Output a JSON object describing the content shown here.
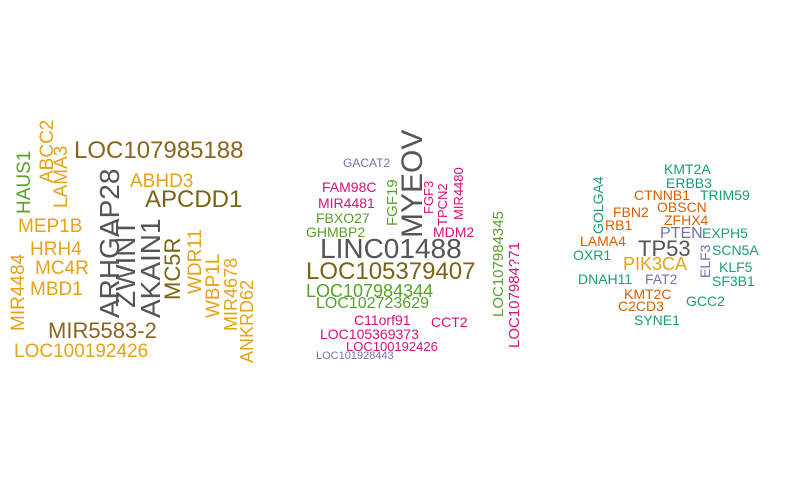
{
  "colors": {
    "gold": "#E6A317",
    "brown": "#8B6520",
    "olive": "#7A6414",
    "dark_gray": "#555555",
    "green": "#5AA02C",
    "magenta": "#D6127A",
    "teal": "#1B9E77",
    "orange": "#D95F02",
    "purple": "#7570B3"
  },
  "clouds": [
    {
      "words": [
        "LOC107985188",
        "ABCC2",
        "LAMA3",
        "HAUS1",
        "ABHD3",
        "APCDD1",
        "ARHGAP28",
        "ZWINT",
        "AKAIN1",
        "MC5R",
        "WDR11",
        "WBP1L",
        "MIR4678",
        "ANKRD62",
        "MEP1B",
        "HRH4",
        "MC4R",
        "MBD1",
        "MIR4484",
        "MIR5583-2",
        "LOC100192426"
      ]
    },
    {
      "words": [
        "GACAT2",
        "MYEOV",
        "FAM98C",
        "MIR4481",
        "FBXO27",
        "GHMBP2",
        "FGF19",
        "FGF3",
        "TPCN2",
        "MIR4480",
        "MDM2",
        "LINC01488",
        "LOC105379407",
        "LOC107984344",
        "LOC102723629",
        "LOC107984345",
        "LOC107984?71",
        "C11orf91",
        "CCT2",
        "LOC105369373",
        "LOC100192426",
        "LOC101928443"
      ]
    },
    {
      "words": [
        "KMT2A",
        "ERBB3",
        "CTNNB1",
        "TRIM59",
        "GOLGA4",
        "FBN2",
        "OBSCN",
        "ZFHX4",
        "RB1",
        "LAMA4",
        "PTEN",
        "EXPH5",
        "TP53",
        "SCN5A",
        "OXR1",
        "PIK3CA",
        "ELF3",
        "KLF5",
        "DNAH11",
        "FAT2",
        "SF3B1",
        "KMT2C",
        "C2CD3",
        "GCC2",
        "SYNE1"
      ]
    }
  ]
}
